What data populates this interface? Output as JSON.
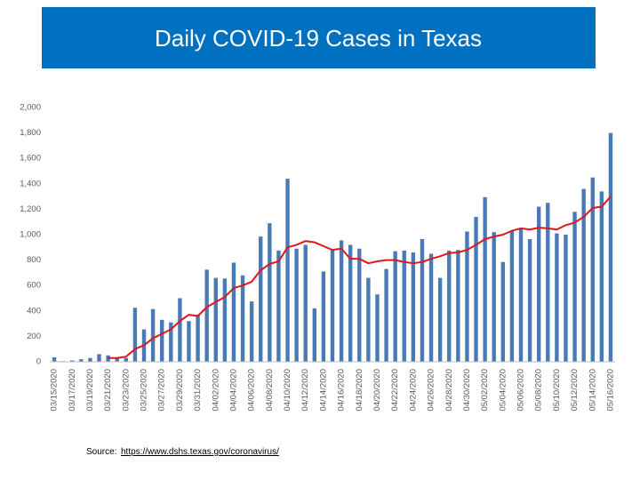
{
  "chart_data": {
    "type": "bar",
    "title": "Daily COVID-19 Cases in Texas",
    "source_label": "Source:",
    "source_url": "https://www.dshs.texas.gov/coronavirus/",
    "categories": [
      "03/15/2020",
      null,
      "03/17/2020",
      null,
      "03/19/2020",
      null,
      "03/21/2020",
      null,
      "03/23/2020",
      null,
      "03/25/2020",
      null,
      "03/27/2020",
      null,
      "03/29/2020",
      null,
      "03/31/2020",
      null,
      "04/02/2020",
      null,
      "04/04/2020",
      null,
      "04/06/2020",
      null,
      "04/08/2020",
      null,
      "04/10/2020",
      null,
      "04/12/2020",
      null,
      "04/14/2020",
      null,
      "04/16/2020",
      null,
      "04/18/2020",
      null,
      "04/20/2020",
      null,
      "04/22/2020",
      null,
      "04/24/2020",
      null,
      "04/26/2020",
      null,
      "04/28/2020",
      null,
      "04/30/2020",
      null,
      "05/02/2020",
      null,
      "05/04/2020",
      null,
      "05/06/2020",
      null,
      "05/08/2020",
      null,
      "05/10/2020",
      null,
      "05/12/2020",
      null,
      "05/14/2020",
      null,
      "05/16/2020"
    ],
    "series": [
      {
        "type": "bar",
        "color": "#4a7ab5",
        "values": [
          35,
          5,
          10,
          20,
          30,
          60,
          50,
          30,
          30,
          425,
          255,
          415,
          330,
          310,
          500,
          320,
          370,
          725,
          660,
          655,
          780,
          680,
          475,
          985,
          1090,
          875,
          1440,
          890,
          920,
          420,
          710,
          880,
          955,
          920,
          890,
          660,
          530,
          730,
          870,
          875,
          860,
          965,
          850,
          660,
          875,
          880,
          1025,
          1140,
          1295,
          1020,
          785,
          1030,
          1050,
          965,
          1220,
          1250,
          1010,
          1000,
          1180,
          1360,
          1450,
          1340,
          1800
        ]
      },
      {
        "type": "line",
        "color": "#e0161b",
        "values": [
          null,
          null,
          null,
          null,
          null,
          null,
          30,
          30,
          40,
          100,
          130,
          185,
          220,
          255,
          320,
          370,
          360,
          430,
          470,
          510,
          580,
          600,
          630,
          720,
          770,
          790,
          900,
          920,
          950,
          940,
          910,
          880,
          890,
          810,
          810,
          775,
          790,
          800,
          800,
          785,
          775,
          785,
          810,
          830,
          855,
          860,
          880,
          920,
          965,
          985,
          1000,
          1030,
          1050,
          1040,
          1055,
          1050,
          1040,
          1075,
          1095,
          1140,
          1210,
          1220,
          1300
        ]
      }
    ],
    "ylim": [
      0,
      2000
    ],
    "yticks": [
      0,
      200,
      400,
      600,
      800,
      {
        "value": 1000,
        "label": "1,000"
      },
      {
        "value": 1200,
        "label": "1,200"
      },
      {
        "value": 1400,
        "label": "1,400"
      },
      {
        "value": 1600,
        "label": "1,600"
      },
      {
        "value": 1800,
        "label": "1,800"
      },
      {
        "value": 2000,
        "label": "2,000"
      }
    ],
    "grid": false
  }
}
